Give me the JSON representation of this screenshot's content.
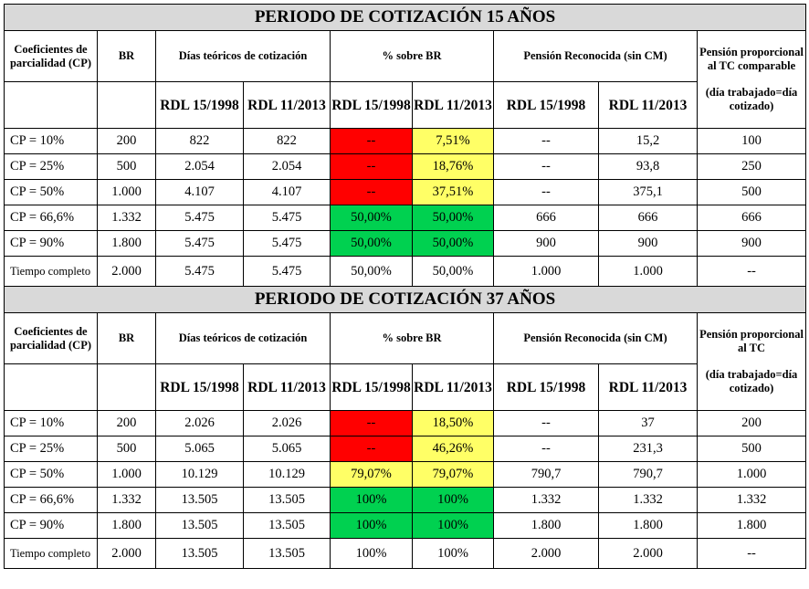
{
  "colors": {
    "red": "#ff0000",
    "yellow": "#ffff66",
    "green": "#00d150",
    "title_bg": "#d9d9d9"
  },
  "tables": [
    {
      "title": "PERIODO DE COTIZACIÓN 15 AÑOS",
      "headers": {
        "cp": "Coeficientes de parcialidad (CP)",
        "br": "BR",
        "dias": "Días teóricos de cotización",
        "pct": "% sobre BR",
        "pension": "Pensión Reconocida (sin CM)",
        "prop_top": "Pensión proporcional al TC comparable",
        "prop_bottom": "(día trabajado=día cotizado)",
        "rdl1": "RDL 15/1998",
        "rdl2": "RDL 11/2013",
        "rdl1_p": "RDL 15/1998",
        "rdl2_p": "RDL 11/2013"
      },
      "rows": [
        {
          "cp": "CP = 10%",
          "br": "200",
          "d1": "822",
          "d2": "822",
          "p1": "--",
          "p2": "7,51%",
          "c1": "red",
          "c2": "yellow",
          "pen1": "--",
          "pen2": "15,2",
          "prop": "100"
        },
        {
          "cp": "CP = 25%",
          "br": "500",
          "d1": "2.054",
          "d2": "2.054",
          "p1": "--",
          "p2": "18,76%",
          "c1": "red",
          "c2": "yellow",
          "pen1": "--",
          "pen2": "93,8",
          "prop": "250"
        },
        {
          "cp": "CP = 50%",
          "br": "1.000",
          "d1": "4.107",
          "d2": "4.107",
          "p1": "--",
          "p2": "37,51%",
          "c1": "red",
          "c2": "yellow",
          "pen1": "--",
          "pen2": "375,1",
          "prop": "500"
        },
        {
          "cp": "CP = 66,6%",
          "br": "1.332",
          "d1": "5.475",
          "d2": "5.475",
          "p1": "50,00%",
          "p2": "50,00%",
          "c1": "green",
          "c2": "green",
          "pen1": "666",
          "pen2": "666",
          "prop": "666"
        },
        {
          "cp": "CP = 90%",
          "br": "1.800",
          "d1": "5.475",
          "d2": "5.475",
          "p1": "50,00%",
          "p2": "50,00%",
          "c1": "green",
          "c2": "green",
          "pen1": "900",
          "pen2": "900",
          "prop": "900"
        },
        {
          "cp": "Tiempo completo",
          "br": "2.000",
          "d1": "5.475",
          "d2": "5.475",
          "p1": "50,00%",
          "p2": "50,00%",
          "c1": "",
          "c2": "",
          "pen1": "1.000",
          "pen2": "1.000",
          "prop": "--",
          "small": true
        }
      ]
    },
    {
      "title": "PERIODO DE COTIZACIÓN 37 AÑOS",
      "headers": {
        "cp": "Coeficientes de parcialidad (CP)",
        "br": "BR",
        "dias": "Días teóricos de cotización",
        "pct": "% sobre BR",
        "pension": "Pensión Reconocida (sin CM)",
        "prop_top": "Pensión proporcional al TC",
        "prop_bottom": "(día trabajado=día cotizado)",
        "rdl1": "RDL 15/1998",
        "rdl2": "RDL 11/2013",
        "rdl1_p": "RDL 15/1998",
        "rdl2_p": "RDL 11/2013"
      },
      "rows": [
        {
          "cp": "CP = 10%",
          "br": "200",
          "d1": "2.026",
          "d2": "2.026",
          "p1": "--",
          "p2": "18,50%",
          "c1": "red",
          "c2": "yellow",
          "pen1": "--",
          "pen2": "37",
          "prop": "200"
        },
        {
          "cp": "CP = 25%",
          "br": "500",
          "d1": "5.065",
          "d2": "5.065",
          "p1": "--",
          "p2": "46,26%",
          "c1": "red",
          "c2": "yellow",
          "pen1": "--",
          "pen2": "231,3",
          "prop": "500"
        },
        {
          "cp": "CP = 50%",
          "br": "1.000",
          "d1": "10.129",
          "d2": "10.129",
          "p1": "79,07%",
          "p2": "79,07%",
          "c1": "yellow",
          "c2": "yellow",
          "pen1": "790,7",
          "pen2": "790,7",
          "prop": "1.000"
        },
        {
          "cp": "CP = 66,6%",
          "br": "1.332",
          "d1": "13.505",
          "d2": "13.505",
          "p1": "100%",
          "p2": "100%",
          "c1": "green",
          "c2": "green",
          "pen1": "1.332",
          "pen2": "1.332",
          "prop": "1.332"
        },
        {
          "cp": "CP = 90%",
          "br": "1.800",
          "d1": "13.505",
          "d2": "13.505",
          "p1": "100%",
          "p2": "100%",
          "c1": "green",
          "c2": "green",
          "pen1": "1.800",
          "pen2": "1.800",
          "prop": "1.800"
        },
        {
          "cp": "Tiempo completo",
          "br": "2.000",
          "d1": "13.505",
          "d2": "13.505",
          "p1": "100%",
          "p2": "100%",
          "c1": "",
          "c2": "",
          "pen1": "2.000",
          "pen2": "2.000",
          "prop": "--",
          "small": true
        }
      ]
    }
  ]
}
